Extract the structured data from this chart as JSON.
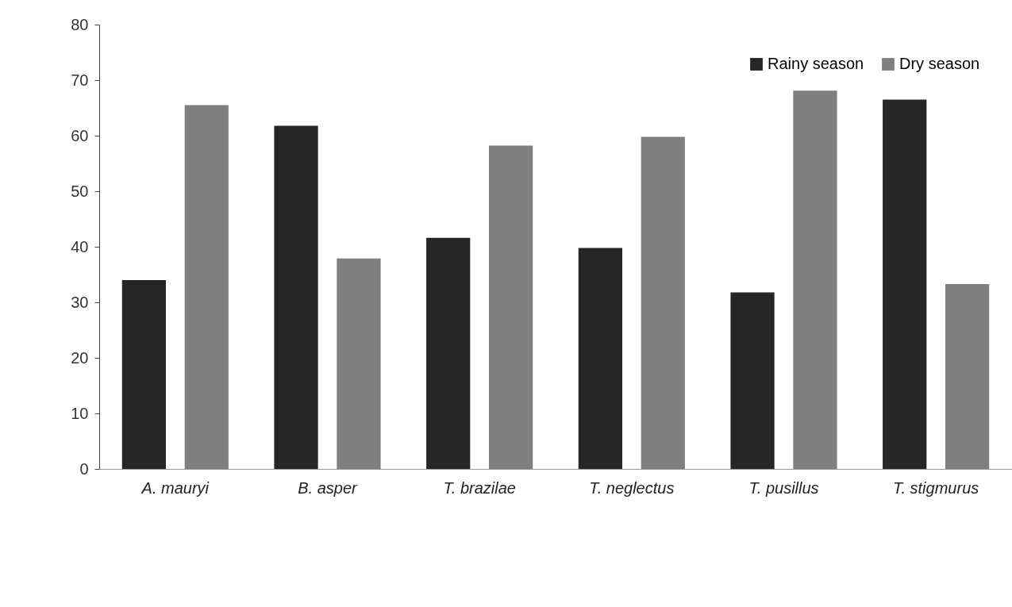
{
  "chart_data": {
    "type": "bar",
    "categories": [
      "A. mauryi",
      "B. asper",
      "T. brazilae",
      "T. neglectus",
      "T. pusillus",
      "T. stigmurus"
    ],
    "series": [
      {
        "name": "Rainy season",
        "color": "#262626",
        "values": [
          34.0,
          61.8,
          41.6,
          39.8,
          31.8,
          66.5
        ]
      },
      {
        "name": "Dry season",
        "color": "#7f7f7f",
        "values": [
          65.5,
          37.9,
          58.2,
          59.8,
          68.1,
          33.3
        ]
      }
    ],
    "ylim": [
      0,
      80
    ],
    "yticks": [
      0,
      10,
      20,
      30,
      40,
      50,
      60,
      70,
      80
    ],
    "grid": false,
    "legend": "top right"
  }
}
